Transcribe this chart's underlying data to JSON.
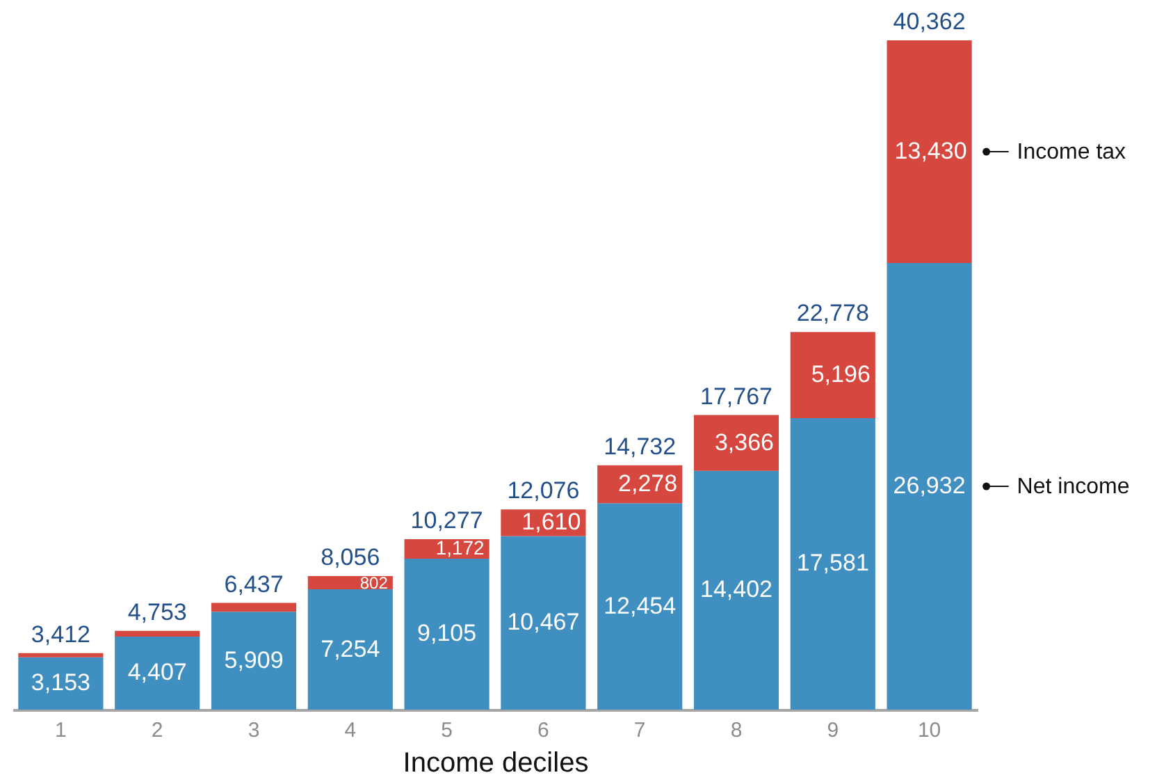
{
  "chart_data": {
    "type": "bar",
    "stacked": true,
    "xlabel": "Income deciles",
    "tick_labels": "x",
    "categories": [
      "1",
      "2",
      "3",
      "4",
      "5",
      "6",
      "7",
      "8",
      "9",
      "10"
    ],
    "series": [
      {
        "name": "Net income",
        "color": "#3f8fc0",
        "values": [
          3153,
          4407,
          5909,
          7254,
          9105,
          10467,
          12454,
          14402,
          17581,
          26932
        ],
        "value_labels": [
          "3,153",
          "4,407",
          "5,909",
          "7,254",
          "9,105",
          "10,467",
          "12,454",
          "14,402",
          "17,581",
          "26,932"
        ]
      },
      {
        "name": "Income tax",
        "color": "#d5473f",
        "values": [
          259,
          346,
          528,
          802,
          1172,
          1610,
          2278,
          3366,
          5196,
          13430
        ],
        "value_labels": [
          null,
          null,
          null,
          "802",
          "1,172",
          "1,610",
          "2,278",
          "3,366",
          "5,196",
          "13,430"
        ]
      }
    ],
    "totals": [
      "3,412",
      "4,753",
      "6,437",
      "8,056",
      "10,277",
      "12,076",
      "14,732",
      "17,767",
      "22,778",
      "40,362"
    ]
  }
}
